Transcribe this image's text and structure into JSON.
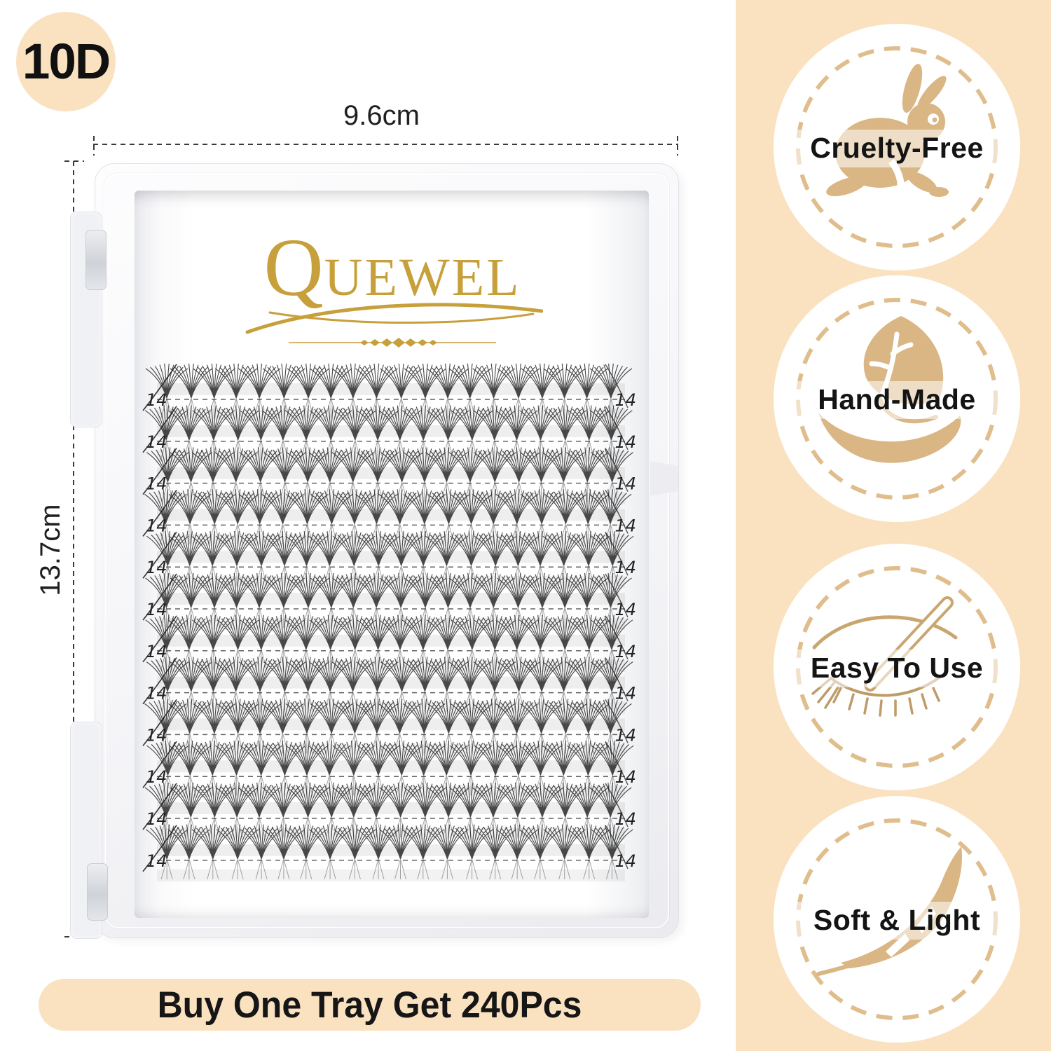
{
  "badge_10d": "10D",
  "dimensions": {
    "width_label": "9.6cm",
    "height_label": "13.7cm"
  },
  "brand": {
    "name": "QUEWEL"
  },
  "tray": {
    "row_label": "14",
    "rows": 12,
    "clusters_per_row": 20
  },
  "features": [
    {
      "label": "Cruelty-Free",
      "icon": "rabbit-icon"
    },
    {
      "label": "Hand-Made",
      "icon": "leaf-hand-icon"
    },
    {
      "label": "Easy To Use",
      "icon": "eye-tweezers-icon"
    },
    {
      "label": "Soft & Light",
      "icon": "feather-icon"
    }
  ],
  "banner": {
    "text": "Buy One Tray Get 240Pcs"
  },
  "colors": {
    "peach": "#FAE2C1",
    "tan": "#D9B684",
    "ring_tan": "#E0BD8C",
    "gold": "#C7A03C",
    "text_dark": "#141414"
  }
}
